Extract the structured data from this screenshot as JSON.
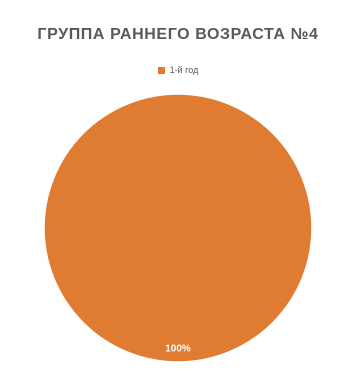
{
  "chart_data": {
    "type": "pie",
    "title": "ГРУППА РАННЕГО ВОЗРАСТА №4",
    "legend_position": "top",
    "categories": [
      "1-й год"
    ],
    "values": [
      100
    ],
    "data_labels": [
      "100%"
    ],
    "colors": [
      "#e07b32"
    ]
  }
}
